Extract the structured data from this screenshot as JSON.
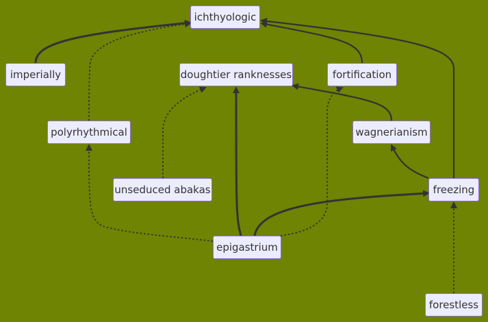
{
  "diagram": {
    "nodes": [
      {
        "id": "ichthyologic",
        "label": "ichthyologic"
      },
      {
        "id": "imperially",
        "label": "imperially"
      },
      {
        "id": "doughtier",
        "label": "doughtier ranknesses"
      },
      {
        "id": "fortification",
        "label": "fortification"
      },
      {
        "id": "polyrhythmical",
        "label": "polyrhythmical"
      },
      {
        "id": "wagnerianism",
        "label": "wagnerianism"
      },
      {
        "id": "unseduced",
        "label": "unseduced abakas"
      },
      {
        "id": "freezing",
        "label": "freezing"
      },
      {
        "id": "epigastrium",
        "label": "epigastrium"
      },
      {
        "id": "forestless",
        "label": "forestless"
      }
    ],
    "edges": [
      {
        "from": "imperially",
        "to": "ichthyologic",
        "style": "thick"
      },
      {
        "from": "polyrhythmical",
        "to": "ichthyologic",
        "style": "dotted"
      },
      {
        "from": "fortification",
        "to": "ichthyologic",
        "style": "solid"
      },
      {
        "from": "freezing",
        "to": "ichthyologic",
        "style": "solid"
      },
      {
        "from": "unseduced",
        "to": "doughtier",
        "style": "dotted"
      },
      {
        "from": "epigastrium",
        "to": "doughtier",
        "style": "thick"
      },
      {
        "from": "wagnerianism",
        "to": "doughtier",
        "style": "solid"
      },
      {
        "from": "epigastrium",
        "to": "fortification",
        "style": "dotted"
      },
      {
        "from": "epigastrium",
        "to": "polyrhythmical",
        "style": "dotted"
      },
      {
        "from": "freezing",
        "to": "wagnerianism",
        "style": "solid"
      },
      {
        "from": "epigastrium",
        "to": "freezing",
        "style": "thick"
      },
      {
        "from": "forestless",
        "to": "freezing",
        "style": "dotted"
      }
    ]
  }
}
